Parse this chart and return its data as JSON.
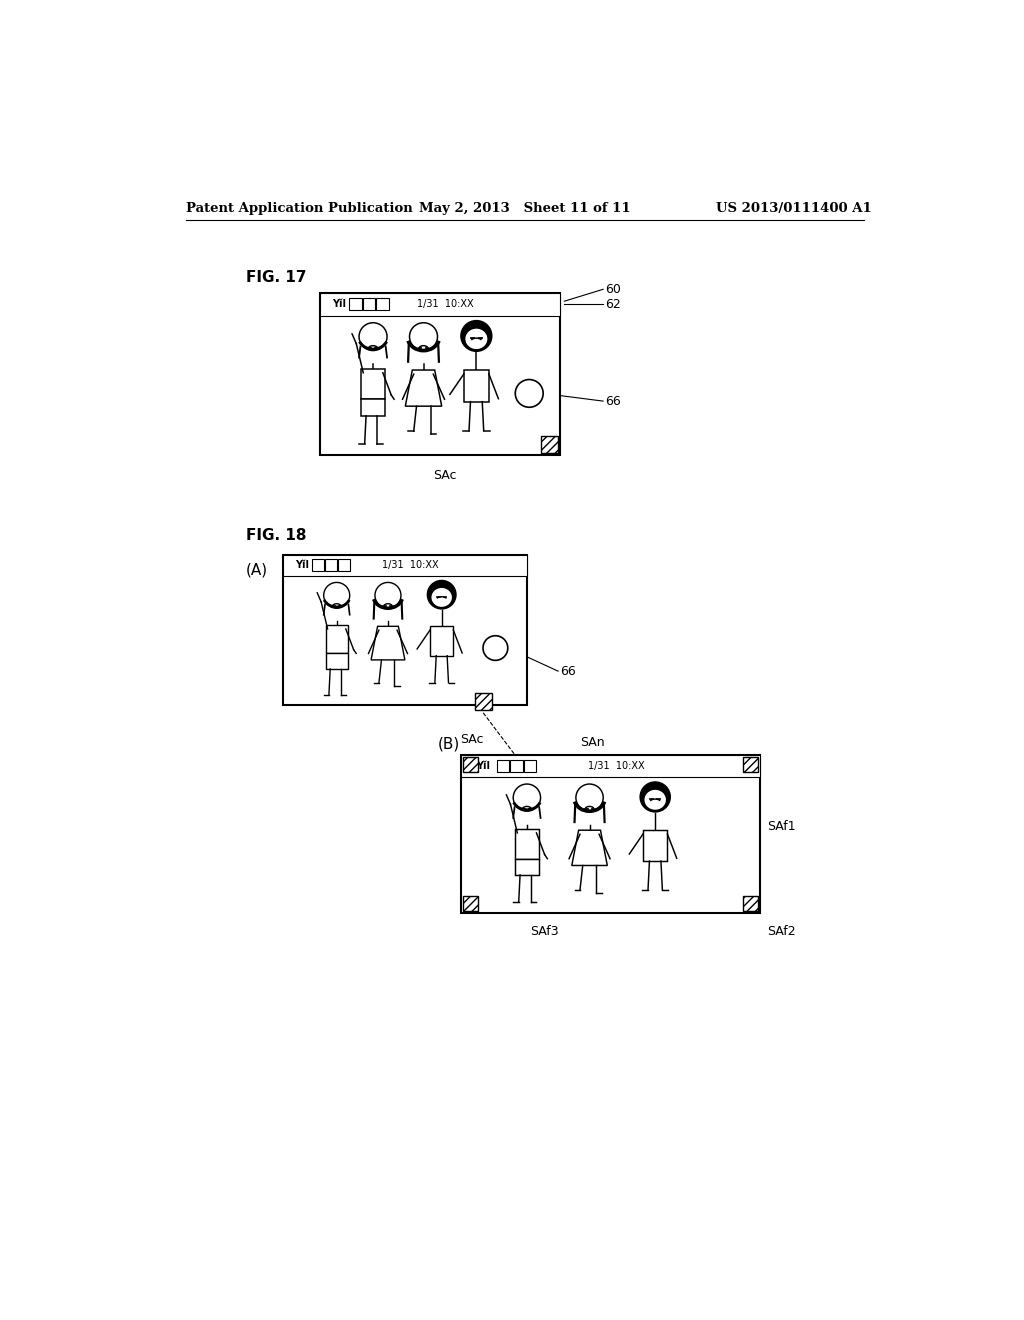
{
  "header_left": "Patent Application Publication",
  "header_mid": "May 2, 2013   Sheet 11 of 11",
  "header_right": "US 2013/0111400 A1",
  "fig17_label": "FIG. 17",
  "fig18_label": "FIG. 18",
  "background_color": "#ffffff",
  "text_color": "#000000"
}
